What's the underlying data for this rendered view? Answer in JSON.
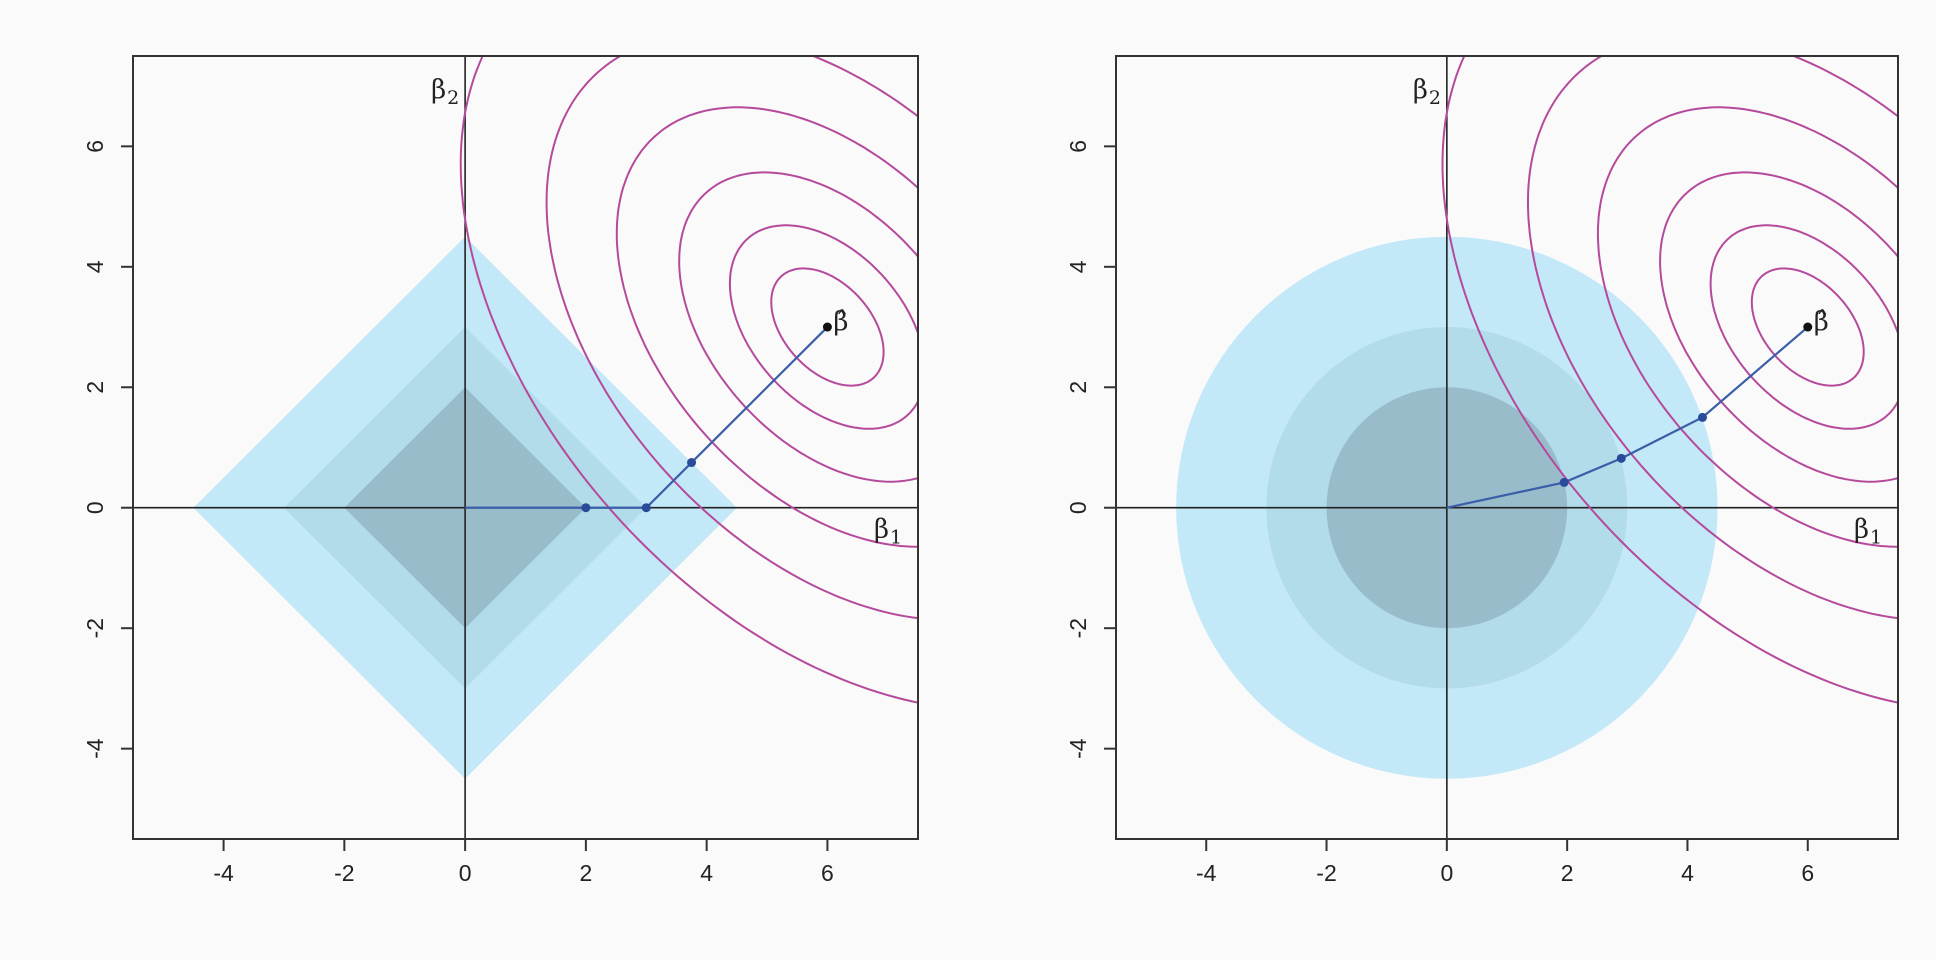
{
  "chart_data": [
    {
      "type": "line",
      "subtype": "lasso-constraint-diagram",
      "title": "",
      "xlim": [
        -5.5,
        7.5
      ],
      "ylim": [
        -5.5,
        7.5
      ],
      "x_ticks": [
        -4,
        -2,
        0,
        2,
        4,
        6
      ],
      "y_ticks": [
        -4,
        -2,
        0,
        2,
        4,
        6
      ],
      "axis_labels": {
        "x_symbol": "β",
        "x_sub": "1",
        "y_symbol": "β",
        "y_sub": "2",
        "beta_hat_symbol": "β̂"
      },
      "beta_hat": [
        6,
        3
      ],
      "constraint_shape": "diamond",
      "constraint_radii": [
        4.5,
        3,
        2
      ],
      "constraint_colors": [
        "#c3e8f8",
        "#b2dcea",
        "#99bccb"
      ],
      "contour_color": "#b54a9c",
      "contour_levels": [
        0.72,
        1.25,
        1.9,
        2.7,
        3.6,
        4.7
      ],
      "contour_directions": [
        [
          0.743,
          0.669
        ],
        [
          -0.669,
          0.743
        ]
      ],
      "contour_scales": [
        1.0,
        0.4
      ],
      "path_color": "#3a5ea8",
      "solution_path": [
        [
          0,
          0
        ],
        [
          2,
          0
        ],
        [
          3,
          0
        ],
        [
          3.75,
          0.75
        ],
        [
          6,
          3
        ]
      ],
      "path_points": [
        [
          2,
          0
        ],
        [
          3,
          0
        ],
        [
          3.75,
          0.75
        ]
      ],
      "grid": false
    },
    {
      "type": "line",
      "subtype": "ridge-constraint-diagram",
      "title": "",
      "xlim": [
        -5.5,
        7.5
      ],
      "ylim": [
        -5.5,
        7.5
      ],
      "x_ticks": [
        -4,
        -2,
        0,
        2,
        4,
        6
      ],
      "y_ticks": [
        -4,
        -2,
        0,
        2,
        4,
        6
      ],
      "axis_labels": {
        "x_symbol": "β",
        "x_sub": "1",
        "y_symbol": "β",
        "y_sub": "2",
        "beta_hat_symbol": "β̂"
      },
      "beta_hat": [
        6,
        3
      ],
      "constraint_shape": "circle",
      "constraint_radii": [
        4.5,
        3,
        2
      ],
      "constraint_colors": [
        "#c3e8f8",
        "#b2dcea",
        "#99bccb"
      ],
      "contour_color": "#b54a9c",
      "contour_levels": [
        0.72,
        1.25,
        1.9,
        2.7,
        3.6,
        4.7
      ],
      "contour_directions": [
        [
          0.743,
          0.669
        ],
        [
          -0.669,
          0.743
        ]
      ],
      "contour_scales": [
        1.0,
        0.4
      ],
      "path_color": "#3a5ea8",
      "solution_path": [
        [
          0,
          0
        ],
        [
          1.95,
          0.42
        ],
        [
          2.9,
          0.82
        ],
        [
          4.25,
          1.5
        ],
        [
          6,
          3
        ]
      ],
      "path_points": [
        [
          1.95,
          0.42
        ],
        [
          2.9,
          0.82
        ],
        [
          4.25,
          1.5
        ]
      ],
      "grid": false
    }
  ]
}
